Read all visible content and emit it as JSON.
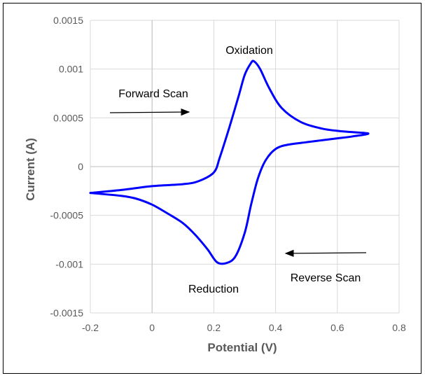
{
  "chart_data": {
    "type": "scatter",
    "title": "",
    "xlabel": "Potential (V)",
    "ylabel": "Current (A)",
    "xlim": [
      -0.2,
      0.8
    ],
    "ylim": [
      -0.0015,
      0.0015
    ],
    "x_ticks": [
      "-0.2",
      "0",
      "0.2",
      "0.4",
      "0.6",
      "0.8"
    ],
    "y_ticks": [
      "0.0015",
      "0.001",
      "0.0005",
      "0",
      "-0.0005",
      "-0.001",
      "-0.0015"
    ],
    "grid": true,
    "legend": "none",
    "line_color": "#0000FF",
    "series": [
      {
        "x": [
          -0.2,
          -0.1,
          0.0,
          0.1,
          0.15,
          0.2,
          0.22,
          0.25,
          0.28,
          0.3,
          0.32,
          0.33,
          0.35,
          0.38,
          0.42,
          0.48,
          0.55,
          0.62,
          0.7,
          0.65,
          0.6,
          0.55,
          0.5,
          0.45,
          0.42,
          0.4,
          0.38,
          0.36,
          0.34,
          0.32,
          0.3,
          0.27,
          0.24,
          0.21,
          0.18,
          0.14,
          0.1,
          0.05,
          0.0,
          -0.05,
          -0.1,
          -0.2
        ],
        "y": [
          -0.00027,
          -0.00024,
          -0.0002,
          -0.00018,
          -0.00015,
          -6e-05,
          0.0001,
          0.0004,
          0.00072,
          0.00094,
          0.00106,
          0.00108,
          0.001,
          0.0008,
          0.0006,
          0.00046,
          0.00039,
          0.00036,
          0.00034,
          0.00031,
          0.00029,
          0.00027,
          0.00025,
          0.00023,
          0.00021,
          0.00018,
          0.00012,
          2e-05,
          -0.00015,
          -0.0004,
          -0.00068,
          -0.00092,
          -0.00099,
          -0.00098,
          -0.00085,
          -0.0007,
          -0.00058,
          -0.00048,
          -0.00039,
          -0.00033,
          -0.0003,
          -0.00027
        ]
      }
    ],
    "annotations": {
      "oxidation": "Oxidation",
      "forward_scan": "Forward Scan",
      "reverse_scan": "Reverse Scan",
      "reduction": "Reduction"
    }
  }
}
